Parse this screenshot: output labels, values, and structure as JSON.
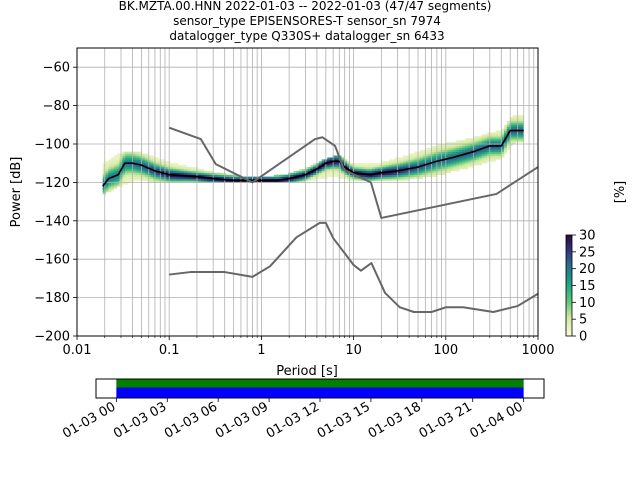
{
  "chart_data": [
    {
      "type": "heatmap",
      "title_lines": [
        "BK.MZTA.00.HNN   2022-01-03 -- 2022-01-03  (47/47 segments)",
        "sensor_type EPISENSORES-T sensor_sn 7974",
        "datalogger_type Q330S+ datalogger_sn 6433"
      ],
      "xlabel": "Period [s]",
      "ylabel": "Power [dB]",
      "xscale": "log",
      "xlim": [
        0.01,
        1000
      ],
      "ylim": [
        -200,
        -50
      ],
      "xtick_values": [
        0.01,
        0.1,
        1,
        10,
        100,
        1000
      ],
      "xtick_labels": [
        "0.01",
        "0.1",
        "1",
        "10",
        "100",
        "1000"
      ],
      "ytick_values": [
        -200,
        -180,
        -160,
        -140,
        -120,
        -100,
        -80,
        -60
      ],
      "ytick_labels": [
        "−200",
        "−180",
        "−160",
        "−140",
        "−120",
        "−100",
        "−80",
        "−60"
      ],
      "grid": true,
      "colorbar": {
        "label": "[%]",
        "range": [
          0,
          30
        ],
        "tick_values": [
          0,
          5,
          10,
          15,
          20,
          25,
          30
        ],
        "tick_labels": [
          "0",
          "5",
          "10",
          "15",
          "20",
          "25",
          "30"
        ]
      },
      "series": [
        {
          "role": "mode",
          "color": "#000000",
          "points": [
            [
              0.019,
              -122
            ],
            [
              0.022,
              -118
            ],
            [
              0.028,
              -116
            ],
            [
              0.033,
              -110
            ],
            [
              0.04,
              -110
            ],
            [
              0.05,
              -111
            ],
            [
              0.07,
              -114
            ],
            [
              0.1,
              -116
            ],
            [
              0.2,
              -117
            ],
            [
              0.3,
              -118
            ],
            [
              0.5,
              -119
            ],
            [
              0.8,
              -119
            ],
            [
              1,
              -119
            ],
            [
              1.5,
              -119
            ],
            [
              2,
              -118
            ],
            [
              3,
              -116
            ],
            [
              4,
              -113
            ],
            [
              5,
              -110
            ],
            [
              6,
              -109
            ],
            [
              7,
              -109
            ],
            [
              8,
              -112
            ],
            [
              10,
              -115
            ],
            [
              15,
              -116
            ],
            [
              20,
              -115
            ],
            [
              30,
              -114
            ],
            [
              50,
              -112
            ],
            [
              80,
              -109
            ],
            [
              120,
              -107
            ],
            [
              200,
              -104
            ],
            [
              300,
              -101
            ],
            [
              400,
              -101
            ],
            [
              500,
              -93
            ],
            [
              700,
              -93
            ]
          ]
        },
        {
          "role": "new_high_noise_model",
          "color": "#666666",
          "points": [
            [
              0.1,
              -91.5
            ],
            [
              0.22,
              -97.4
            ],
            [
              0.32,
              -110.5
            ],
            [
              0.8,
              -120
            ],
            [
              3.8,
              -97.5
            ],
            [
              4.6,
              -96.5
            ],
            [
              6.3,
              -101
            ],
            [
              7.9,
              -113.5
            ],
            [
              15.4,
              -120
            ],
            [
              20,
              -138.5
            ],
            [
              354.8,
              -126
            ],
            [
              1000,
              -112
            ]
          ]
        },
        {
          "role": "new_low_noise_model",
          "color": "#666666",
          "points": [
            [
              0.1,
              -168
            ],
            [
              0.17,
              -166.7
            ],
            [
              0.4,
              -166.7
            ],
            [
              0.8,
              -169.2
            ],
            [
              1.24,
              -163.7
            ],
            [
              2.4,
              -148.6
            ],
            [
              4.3,
              -141.1
            ],
            [
              5,
              -141.1
            ],
            [
              6,
              -149
            ],
            [
              10,
              -163
            ],
            [
              12,
              -166
            ],
            [
              15.6,
              -162
            ],
            [
              21.9,
              -177.5
            ],
            [
              31.6,
              -185
            ],
            [
              45,
              -187.5
            ],
            [
              70,
              -187.5
            ],
            [
              101,
              -185
            ],
            [
              154,
              -185
            ],
            [
              328,
              -187.5
            ],
            [
              600,
              -184.4
            ],
            [
              1000,
              -178
            ]
          ]
        }
      ],
      "spread": [
        {
          "period": 0.019,
          "low": -126,
          "high": -111
        },
        {
          "period": 0.03,
          "low": -121,
          "high": -105
        },
        {
          "period": 0.04,
          "low": -119,
          "high": -104
        },
        {
          "period": 0.06,
          "low": -119,
          "high": -106
        },
        {
          "period": 0.1,
          "low": -120,
          "high": -110
        },
        {
          "period": 0.2,
          "low": -120,
          "high": -113
        },
        {
          "period": 0.3,
          "low": -120,
          "high": -115
        },
        {
          "period": 0.6,
          "low": -120,
          "high": -117
        },
        {
          "period": 1,
          "low": -120,
          "high": -118
        },
        {
          "period": 2,
          "low": -120,
          "high": -116
        },
        {
          "period": 3,
          "low": -119,
          "high": -113
        },
        {
          "period": 5,
          "low": -117,
          "high": -108
        },
        {
          "period": 7,
          "low": -117,
          "high": -106
        },
        {
          "period": 10,
          "low": -119,
          "high": -111
        },
        {
          "period": 20,
          "low": -119,
          "high": -110
        },
        {
          "period": 40,
          "low": -118,
          "high": -106
        },
        {
          "period": 80,
          "low": -116,
          "high": -101
        },
        {
          "period": 200,
          "low": -111,
          "high": -97
        },
        {
          "period": 400,
          "low": -107,
          "high": -93
        },
        {
          "period": 550,
          "low": -99,
          "high": -85
        },
        {
          "period": 700,
          "low": -99,
          "high": -85
        }
      ]
    },
    {
      "type": "timeline",
      "xtick_labels": [
        "01-03 00",
        "01-03 03",
        "01-03 06",
        "01-03 09",
        "01-03 12",
        "01-03 15",
        "01-03 18",
        "01-03 21",
        "01-04 00"
      ],
      "xtick_hours": [
        0,
        3,
        6,
        9,
        12,
        15,
        18,
        21,
        24
      ],
      "xlim_hours": [
        -1.2,
        25.2
      ],
      "bars": [
        {
          "role": "data",
          "start_hour": 0,
          "end_hour": 24,
          "color": "#008000"
        },
        {
          "role": "psd_segments",
          "start_hour": 0,
          "end_hour": 24,
          "color": "#0000ff"
        }
      ]
    }
  ]
}
